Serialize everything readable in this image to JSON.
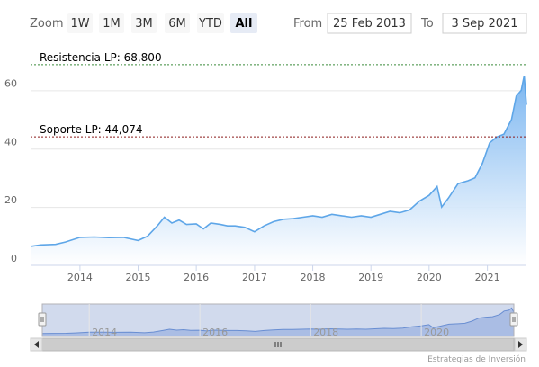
{
  "range_selector": {
    "zoom_label": "Zoom",
    "buttons": [
      "1W",
      "1M",
      "3M",
      "6M",
      "YTD",
      "All"
    ],
    "selected": "All",
    "from_label": "From",
    "from_value": "25 Feb 2013",
    "to_label": "To",
    "to_value": "3 Sep 2021"
  },
  "credit": "Estrategias de Inversión",
  "colors": {
    "line": "#5ea6e8",
    "area_top": "#74b2f0",
    "area_bottom": "#ffffff",
    "resistance": "#3a8a3a",
    "support": "#8b1a1a",
    "grid": "#e6e6e6",
    "button_selected": "#e6ebf5",
    "navigator_mask": "#c8d6f2"
  },
  "chart_data": {
    "type": "area",
    "title": "",
    "xlabel": "",
    "ylabel": "",
    "x_range": [
      "2013-02-25",
      "2021-09-03"
    ],
    "ylim": [
      0,
      70
    ],
    "y_ticks": [
      0,
      20,
      40,
      60
    ],
    "x_ticks": [
      "2014",
      "2015",
      "2016",
      "2017",
      "2018",
      "2019",
      "2020",
      "2021"
    ],
    "navigator_ticks": [
      "2014",
      "2016",
      "2018",
      "2020"
    ],
    "grid": true,
    "series": [
      {
        "x": [
          "2013-02-25",
          "2013-05-01",
          "2013-08-01",
          "2013-10-01",
          "2014-01-01",
          "2014-04-01",
          "2014-07-01",
          "2014-10-01",
          "2015-01-01",
          "2015-03-01",
          "2015-05-01",
          "2015-06-15",
          "2015-08-01",
          "2015-09-15",
          "2015-11-01",
          "2016-01-01",
          "2016-02-15",
          "2016-04-01",
          "2016-06-01",
          "2016-07-15",
          "2016-09-01",
          "2016-11-01",
          "2017-01-01",
          "2017-03-01",
          "2017-05-01",
          "2017-07-01",
          "2017-09-01",
          "2017-11-01",
          "2018-01-01",
          "2018-03-01",
          "2018-05-01",
          "2018-07-01",
          "2018-09-01",
          "2018-11-01",
          "2019-01-01",
          "2019-03-01",
          "2019-05-01",
          "2019-07-01",
          "2019-09-01",
          "2019-11-01",
          "2020-01-01",
          "2020-02-20",
          "2020-03-20",
          "2020-05-01",
          "2020-07-01",
          "2020-09-01",
          "2020-10-15",
          "2020-12-01",
          "2021-01-15",
          "2021-03-01",
          "2021-04-15",
          "2021-06-01",
          "2021-07-01",
          "2021-08-01",
          "2021-08-20",
          "2021-09-03"
        ],
        "y": [
          6.5,
          7,
          7.2,
          8,
          9.6,
          9.7,
          9.5,
          9.6,
          8.5,
          10,
          13.5,
          16.5,
          14.5,
          15.5,
          14,
          14.2,
          12.5,
          14.5,
          14,
          13.5,
          13.5,
          13,
          11.5,
          13.5,
          15,
          15.8,
          16,
          16.5,
          17,
          16.5,
          17.5,
          17,
          16.5,
          17,
          16.5,
          17.5,
          18.5,
          18,
          19,
          22,
          24,
          27,
          20,
          23,
          28,
          29,
          30,
          35,
          42,
          44,
          45,
          50,
          58,
          60,
          65,
          55
        ]
      }
    ],
    "annotations": [
      {
        "label": "Resistencia LP: 68,800",
        "y": 68.8,
        "style": "dashed",
        "color": "#3a8a3a"
      },
      {
        "label": "Soporte LP: 44,074",
        "y": 44.074,
        "style": "dashed",
        "color": "#8b1a1a"
      }
    ]
  }
}
